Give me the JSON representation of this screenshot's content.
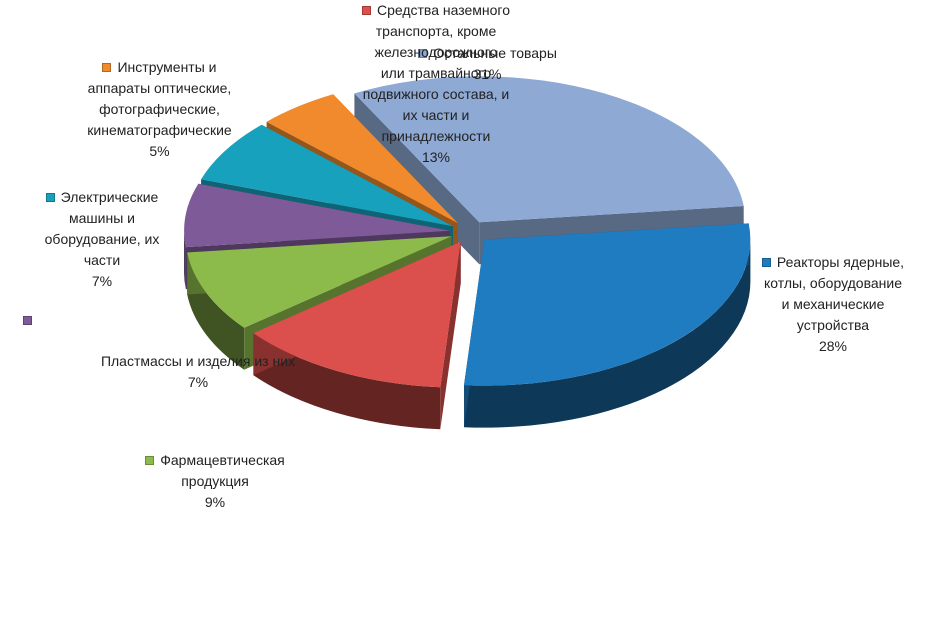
{
  "chart_data": {
    "type": "pie",
    "style": "3d-exploded",
    "legend": "data labels beside slices",
    "slices": [
      {
        "id": "other",
        "label_lines": [
          "Остальные товары"
        ],
        "percent": "31%",
        "value": 31,
        "color": "#8EA9D3"
      },
      {
        "id": "reactors",
        "label_lines": [
          "Реакторы ядерные,",
          "котлы, оборудование",
          "и механические",
          "устройства"
        ],
        "percent": "28%",
        "value": 28,
        "color": "#1F7CC1"
      },
      {
        "id": "vehicles",
        "label_lines": [
          "Средства наземного",
          "транспорта, кроме",
          "железнодорожного",
          "или трамвайного",
          "подвижного состава, и",
          "их части и",
          "принадлежности"
        ],
        "percent": "13%",
        "value": 13,
        "color": "#DB4F4C"
      },
      {
        "id": "pharma",
        "label_lines": [
          "Фармацевтическая",
          "продукция"
        ],
        "percent": "9%",
        "value": 9,
        "color": "#8DBB4B"
      },
      {
        "id": "plastics",
        "label_lines": [
          "Пластмассы и изделия из них"
        ],
        "percent": "7%",
        "value": 7,
        "color": "#7E5A98"
      },
      {
        "id": "electrical",
        "label_lines": [
          "Электрические",
          "машины и",
          "оборудование,  их",
          "части"
        ],
        "percent": "7%",
        "value": 7,
        "color": "#17A1BC"
      },
      {
        "id": "instruments",
        "label_lines": [
          "Инструменты и",
          "аппараты оптические,",
          "фотографические,",
          "кинематографические"
        ],
        "percent": "5%",
        "value": 5,
        "color": "#F08A2C"
      }
    ]
  }
}
